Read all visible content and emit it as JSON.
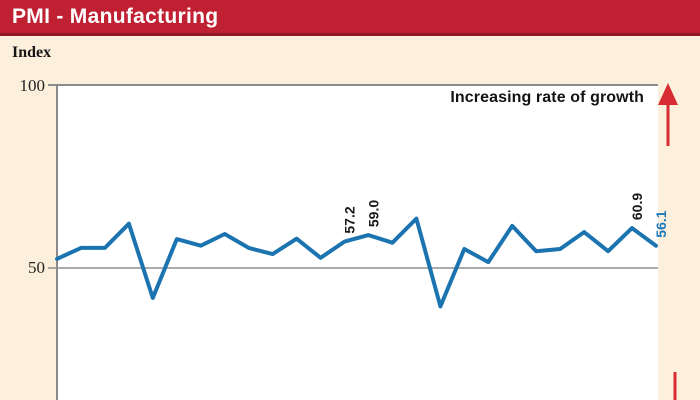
{
  "header": {
    "title": "PMI - Manufacturing"
  },
  "colors": {
    "background": "#fcefdc",
    "header_bg": "#bf2133",
    "header_border": "#8e1a29",
    "plot_bg": "#ffffff",
    "line": "#1b74b0",
    "axis_gray": "#8a8a8a",
    "arrow_red": "#d72c34",
    "annotation_black": "#1a1a1a",
    "annotation_blue": "#1878bc"
  },
  "chart_data": {
    "type": "line",
    "title": "PMI - Manufacturing",
    "ylabel": "Index",
    "yticks": [
      {
        "value": 100,
        "label": "100"
      },
      {
        "value": 50,
        "label": "50"
      }
    ],
    "ymax": 100,
    "layout": {
      "grid": "single horizontal gridline at 50",
      "legend": "none",
      "x_axis_labels_visible": false,
      "bottom_of_plot_cropped": true
    },
    "series": [
      {
        "name": "PMI Manufacturing",
        "color": "#1b74b0",
        "values": [
          52.5,
          55.5,
          55.5,
          62.1,
          41.8,
          57.9,
          56.1,
          59.3,
          55.5,
          53.8,
          58.0,
          52.8,
          57.2,
          59.0,
          56.9,
          63.5,
          39.5,
          55.2,
          51.6,
          61.5,
          54.6,
          55.2,
          59.8,
          54.6,
          60.9,
          56.1
        ]
      }
    ],
    "annotations": [
      {
        "label": "57.2",
        "point_index": 12,
        "color": "#1a1a1a"
      },
      {
        "label": "59.0",
        "point_index": 13,
        "color": "#1a1a1a"
      },
      {
        "label": "60.9",
        "point_index": 24,
        "color": "#1a1a1a"
      },
      {
        "label": "56.1",
        "point_index": 25,
        "color": "#1878bc"
      }
    ],
    "growth_note": "Increasing rate of growth"
  }
}
